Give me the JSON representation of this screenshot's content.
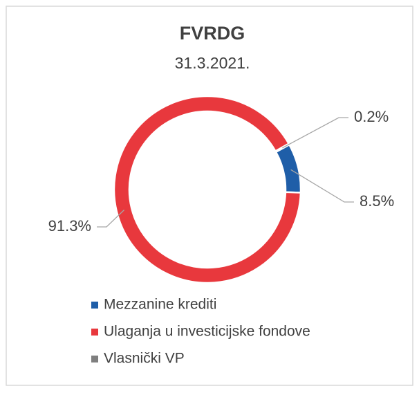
{
  "chart_data": {
    "type": "donut",
    "title": "FVRDG",
    "subtitle": "31.3.2021.",
    "categories": [
      "Mezzanine krediti",
      "Ulaganja u investicijske fondove",
      "Vlasnički VP"
    ],
    "values": [
      8.5,
      91.3,
      0.2
    ],
    "value_labels": [
      "8.5%",
      "91.3%",
      "0.2%"
    ],
    "colors": [
      "#1f5ea8",
      "#e8383d",
      "#7f7f7f"
    ],
    "legend": "bottom"
  }
}
